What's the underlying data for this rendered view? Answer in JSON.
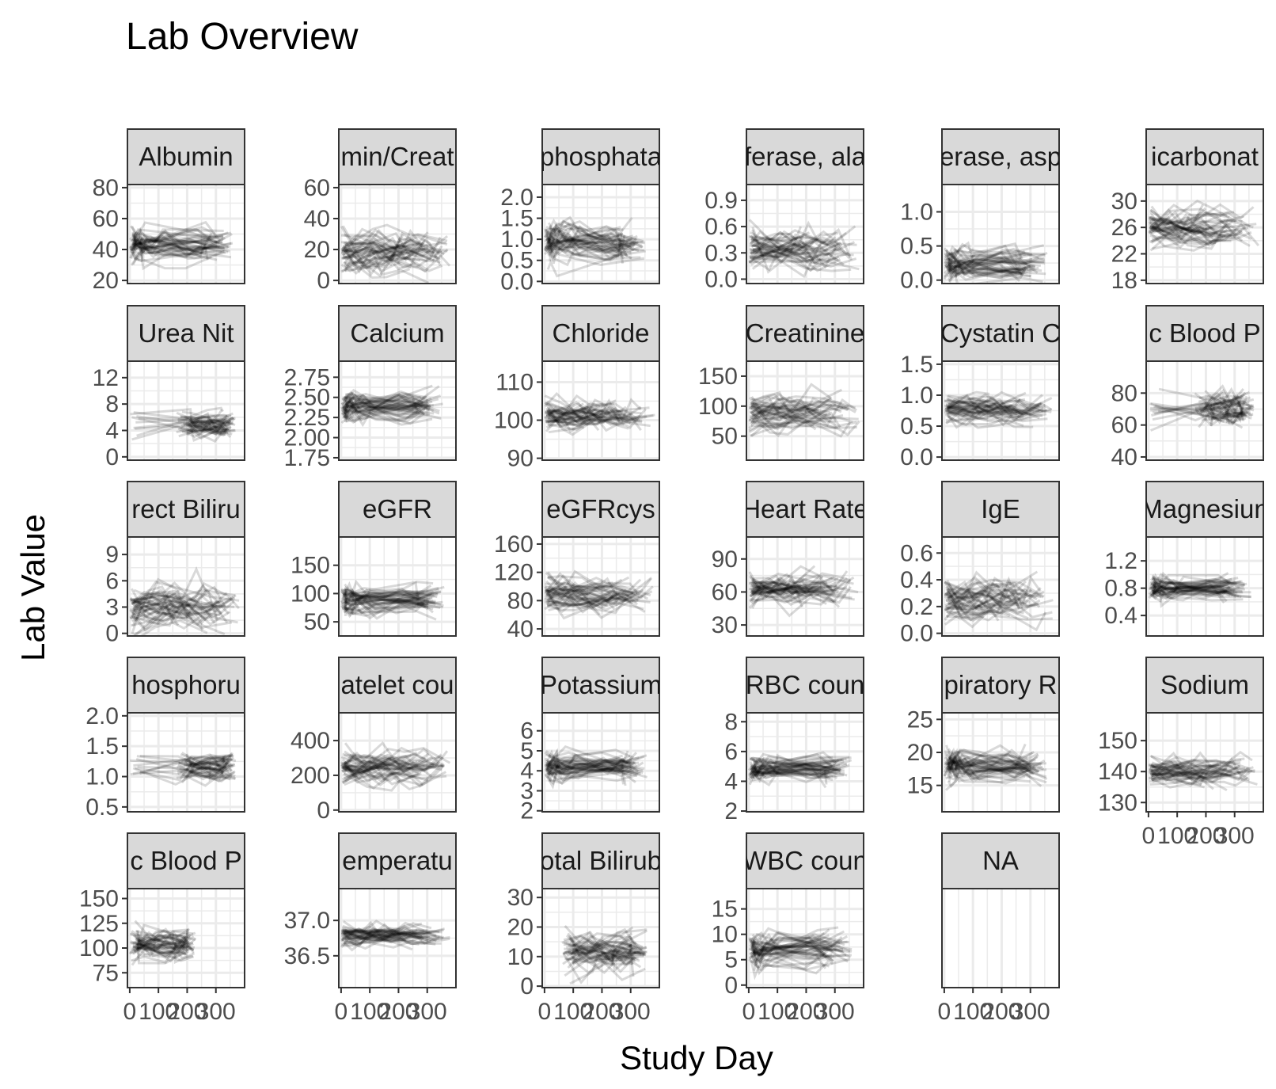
{
  "chart_data": {
    "type": "line",
    "title": "Lab Overview",
    "xlabel": "Study Day",
    "ylabel": "Lab Value",
    "grid": true,
    "x_ticks": [
      "0",
      "100",
      "200",
      "300"
    ],
    "xlim": [
      -8,
      400
    ],
    "line_color": "#000000",
    "line_opacity": 0.15,
    "strip_fill": "#d9d9d9",
    "grid_color": "#ebebeb",
    "panels": [
      {
        "label": "Albumin",
        "display": "Albumin",
        "ylim": [
          18,
          82
        ],
        "yticks": [
          "20",
          "40",
          "60",
          "80"
        ],
        "center": 43,
        "spread": 9,
        "mode": "gap"
      },
      {
        "label": "Albumin/Creatinine",
        "display": "min/Creat",
        "ylim": [
          -2,
          62
        ],
        "yticks": [
          "0",
          "20",
          "40",
          "60"
        ],
        "center": 17,
        "spread": 12,
        "mode": "spread"
      },
      {
        "label": "Alkaline phosphatase",
        "display": "phosphata",
        "ylim": [
          -0.05,
          2.3
        ],
        "yticks": [
          "0.0",
          "0.5",
          "1.0",
          "1.5",
          "2.0"
        ],
        "center": 0.95,
        "spread": 0.4,
        "mode": "gap"
      },
      {
        "label": "Alanine aminotransferase",
        "display": "ferase, ala",
        "ylim": [
          -0.05,
          1.08
        ],
        "yticks": [
          "0.0",
          "0.3",
          "0.6",
          "0.9"
        ],
        "center": 0.35,
        "spread": 0.22,
        "mode": "spread"
      },
      {
        "label": "Aspartate aminotransferase",
        "display": "erase, asp",
        "ylim": [
          -0.05,
          1.4
        ],
        "yticks": [
          "0.0",
          "0.5",
          "1.0"
        ],
        "center": 0.25,
        "spread": 0.18,
        "mode": "gap"
      },
      {
        "label": "Bicarbonate",
        "display": "icarbonat",
        "ylim": [
          17.5,
          32.5
        ],
        "yticks": [
          "18",
          "22",
          "26",
          "30"
        ],
        "center": 25.5,
        "spread": 2.4,
        "mode": "spread"
      },
      {
        "label": "Blood Urea Nitrogen",
        "display": "Urea Nit",
        "ylim": [
          -0.5,
          14.5
        ],
        "yticks": [
          "0",
          "4",
          "8",
          "12"
        ],
        "center": 5,
        "spread": 1.8,
        "mode": "late"
      },
      {
        "label": "Calcium",
        "display": "Calcium",
        "ylim": [
          1.72,
          2.95
        ],
        "yticks": [
          "1.75",
          "2.00",
          "2.25",
          "2.50",
          "2.75"
        ],
        "center": 2.38,
        "spread": 0.17,
        "mode": "gap"
      },
      {
        "label": "Chloride",
        "display": "Chloride",
        "ylim": [
          89.5,
          115.5
        ],
        "yticks": [
          "90",
          "100",
          "110"
        ],
        "center": 101,
        "spread": 3.5,
        "mode": "spread"
      },
      {
        "label": "Creatinine",
        "display": "Creatinine",
        "ylim": [
          10,
          175
        ],
        "yticks": [
          "50",
          "100",
          "150"
        ],
        "center": 88,
        "spread": 25,
        "mode": "spread"
      },
      {
        "label": "Cystatin C",
        "display": "Cystatin C",
        "ylim": [
          -0.05,
          1.55
        ],
        "yticks": [
          "0.0",
          "0.5",
          "1.0",
          "1.5"
        ],
        "center": 0.78,
        "spread": 0.2,
        "mode": "spread"
      },
      {
        "label": "Diastolic Blood Pressure",
        "display": "c Blood P",
        "ylim": [
          38,
          100
        ],
        "yticks": [
          "40",
          "60",
          "80"
        ],
        "center": 70,
        "spread": 10,
        "mode": "late"
      },
      {
        "label": "Direct Bilirubin",
        "display": "rect Biliru",
        "ylim": [
          -0.3,
          11
        ],
        "yticks": [
          "0",
          "3",
          "6",
          "9"
        ],
        "center": 3,
        "spread": 2.3,
        "mode": "spread"
      },
      {
        "label": "eGFR",
        "display": "eGFR",
        "ylim": [
          25,
          200
        ],
        "yticks": [
          "50",
          "100",
          "150"
        ],
        "center": 90,
        "spread": 22,
        "mode": "gap"
      },
      {
        "label": "eGFRcys",
        "display": "eGFRcys",
        "ylim": [
          30,
          170
        ],
        "yticks": [
          "40",
          "80",
          "120",
          "160"
        ],
        "center": 88,
        "spread": 22,
        "mode": "spread"
      },
      {
        "label": "Heart Rate",
        "display": "Heart Rate",
        "ylim": [
          20,
          110
        ],
        "yticks": [
          "30",
          "60",
          "90"
        ],
        "center": 63,
        "spread": 14,
        "mode": "spread"
      },
      {
        "label": "IgE",
        "display": "IgE",
        "ylim": [
          -0.02,
          0.72
        ],
        "yticks": [
          "0.0",
          "0.2",
          "0.4",
          "0.6"
        ],
        "center": 0.24,
        "spread": 0.14,
        "mode": "spread"
      },
      {
        "label": "Magnesium",
        "display": "Magnesiun",
        "ylim": [
          0.1,
          1.55
        ],
        "yticks": [
          "0.4",
          "0.8",
          "1.2"
        ],
        "center": 0.8,
        "spread": 0.16,
        "mode": "gap"
      },
      {
        "label": "Phosphorus",
        "display": "hosphoru",
        "ylim": [
          0.42,
          2.05
        ],
        "yticks": [
          "0.5",
          "1.0",
          "1.5",
          "2.0"
        ],
        "center": 1.18,
        "spread": 0.2,
        "mode": "late"
      },
      {
        "label": "Platelet count",
        "display": "atelet cou",
        "ylim": [
          -10,
          560
        ],
        "yticks": [
          "0",
          "200",
          "400"
        ],
        "center": 250,
        "spread": 80,
        "mode": "spread"
      },
      {
        "label": "Potassium",
        "display": "Potassium",
        "ylim": [
          1.95,
          6.9
        ],
        "yticks": [
          "2",
          "3",
          "4",
          "5",
          "6"
        ],
        "center": 4.2,
        "spread": 0.6,
        "mode": "gap"
      },
      {
        "label": "RBC count",
        "display": "RBC coun",
        "ylim": [
          1.95,
          8.6
        ],
        "yticks": [
          "2",
          "4",
          "6",
          "8"
        ],
        "center": 4.9,
        "spread": 0.8,
        "mode": "gap"
      },
      {
        "label": "Respiratory Rate",
        "display": "piratory R",
        "ylim": [
          11,
          26
        ],
        "yticks": [
          "15",
          "20",
          "25"
        ],
        "center": 18,
        "spread": 2.2,
        "mode": "gap"
      },
      {
        "label": "Sodium",
        "display": "Sodium",
        "ylim": [
          127,
          159
        ],
        "yticks": [
          "130",
          "140",
          "150"
        ],
        "center": 140,
        "spread": 4,
        "mode": "spread"
      },
      {
        "label": "Systolic Blood Pressure",
        "display": "c Blood P",
        "ylim": [
          60,
          160
        ],
        "yticks": [
          "75",
          "100",
          "125",
          "150"
        ],
        "center": 103,
        "spread": 13,
        "mode": "early"
      },
      {
        "label": "Temperature",
        "display": "emperatu",
        "ylim": [
          36.05,
          37.45
        ],
        "yticks": [
          "36.5",
          "37.0"
        ],
        "center": 36.8,
        "spread": 0.14,
        "mode": "spread"
      },
      {
        "label": "Total Bilirubin",
        "display": "otal Bilirub",
        "ylim": [
          -0.5,
          33
        ],
        "yticks": [
          "0",
          "10",
          "20",
          "30"
        ],
        "center": 12,
        "spread": 6,
        "mode": "latestart"
      },
      {
        "label": "WBC count",
        "display": "WBC coun",
        "ylim": [
          -0.5,
          19
        ],
        "yticks": [
          "0",
          "5",
          "10",
          "15"
        ],
        "center": 7,
        "spread": 2.8,
        "mode": "gap"
      },
      {
        "label": "NA",
        "display": "NA",
        "ylim": [
          0,
          1
        ],
        "yticks": [],
        "center": 0,
        "spread": 0,
        "mode": "empty"
      }
    ]
  }
}
